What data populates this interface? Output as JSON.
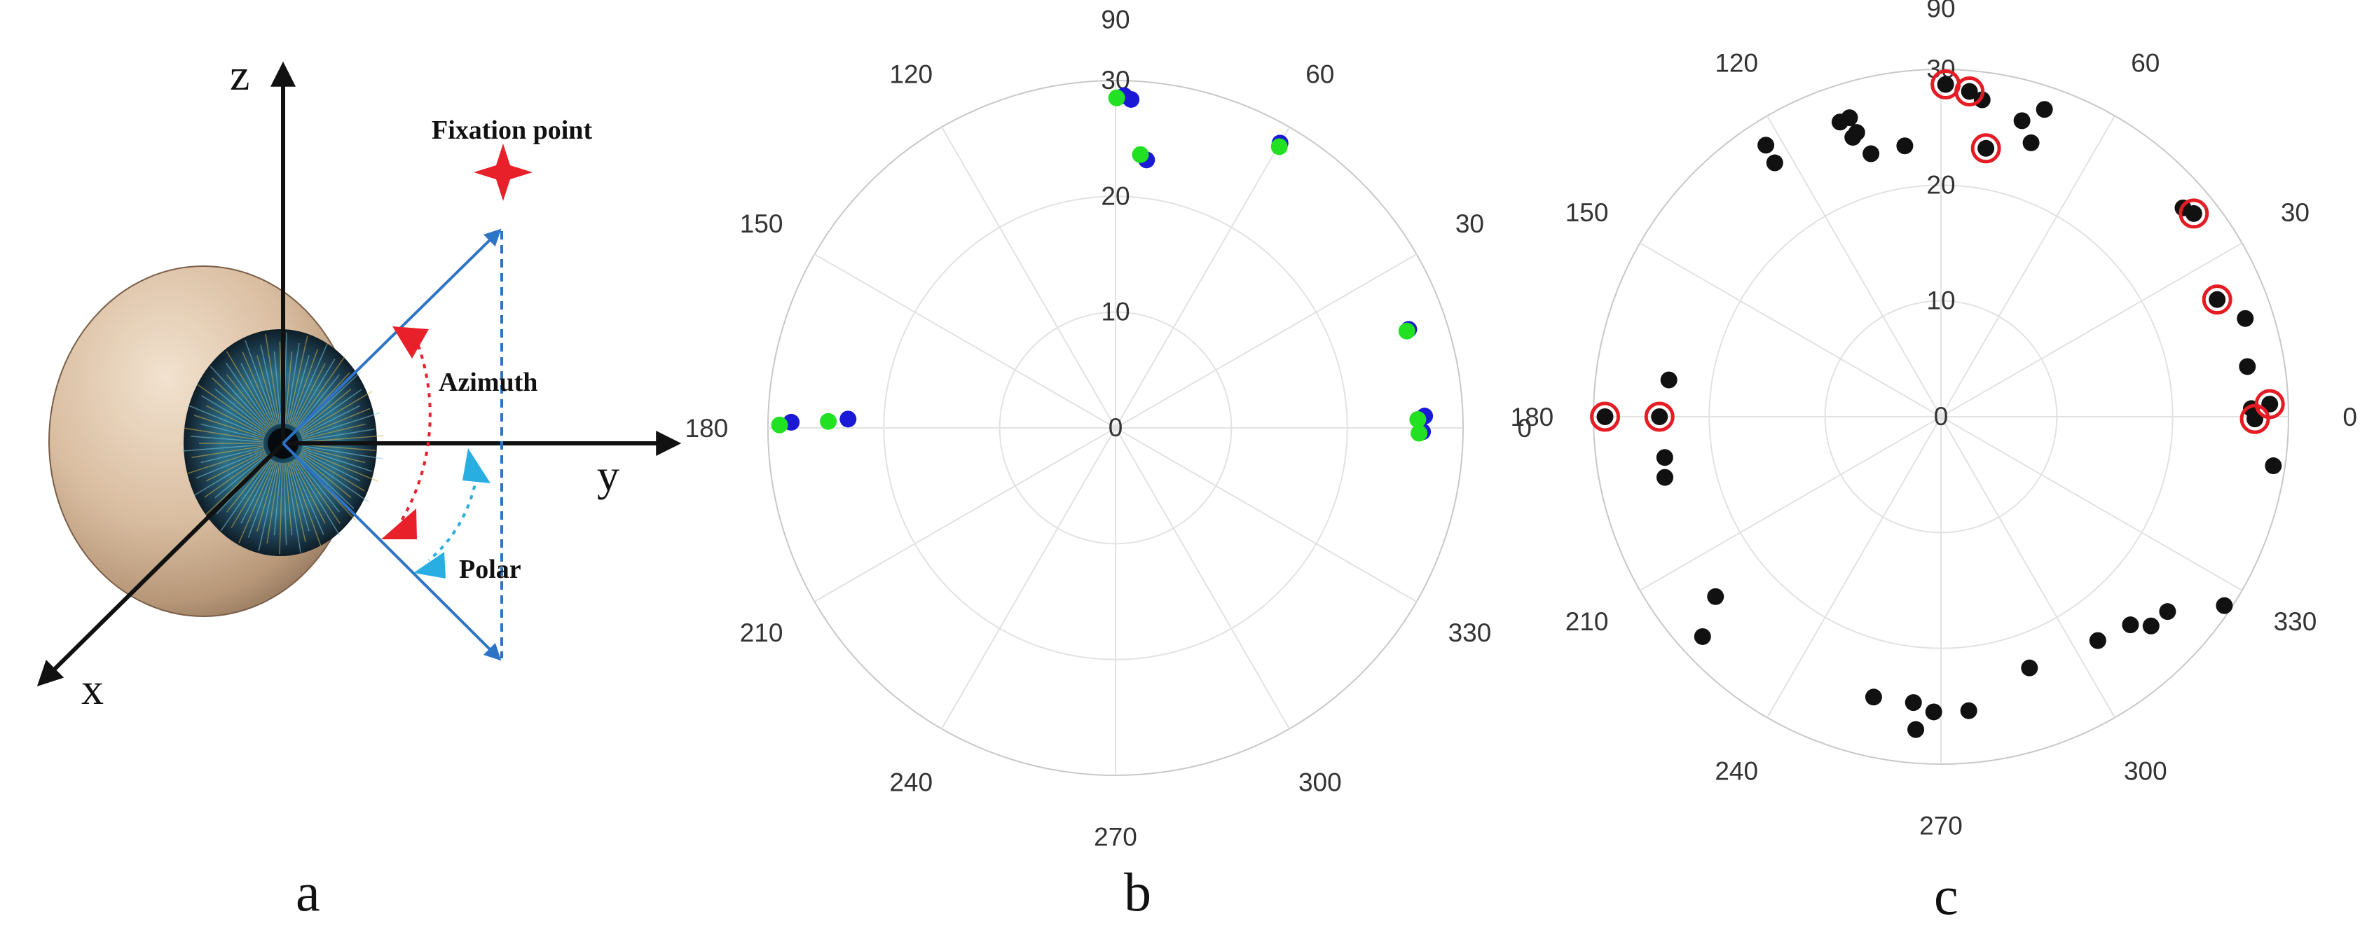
{
  "panel_a": {
    "axis_labels": {
      "z": "z",
      "y": "y",
      "x": "x"
    },
    "fixation_label": "Fixation point",
    "azimuth_label": "Azimuth",
    "polar_label": "Polar",
    "panel_letter": "a",
    "colors": {
      "fixation": "#e8202a",
      "vector": "#2e74c6",
      "azimuth_arc": "#e8202a",
      "polar_arc": "#29aee2"
    }
  },
  "panel_b": {
    "panel_letter": "b",
    "angle_labels": [
      "0",
      "30",
      "60",
      "90",
      "120",
      "150",
      "180",
      "210",
      "240",
      "270",
      "300",
      "330"
    ],
    "radial_labels": [
      "0",
      "10",
      "20",
      "30"
    ]
  },
  "panel_c": {
    "panel_letter": "c",
    "angle_labels": [
      "0",
      "30",
      "60",
      "90",
      "120",
      "150",
      "180",
      "210",
      "240",
      "270",
      "300",
      "330"
    ],
    "radial_labels": [
      "0",
      "10",
      "20",
      "30"
    ]
  },
  "chart_data": [
    {
      "type": "scatter",
      "coordinate_system": "polar",
      "theta_unit": "degrees",
      "r_range": [
        0,
        30
      ],
      "theta_ticks": [
        0,
        30,
        60,
        90,
        120,
        150,
        180,
        210,
        240,
        270,
        300,
        330
      ],
      "r_ticks": [
        0,
        10,
        20,
        30
      ],
      "grid": true,
      "series": [
        {
          "color": "#1a1ad6",
          "points": [
            [
              88.5,
              28.7
            ],
            [
              87.3,
              28.4
            ],
            [
              83.4,
              23.3
            ],
            [
              60.0,
              28.4
            ],
            [
              18.6,
              26.7
            ],
            [
              2.2,
              26.7
            ],
            [
              359.3,
              26.5
            ],
            [
              179.0,
              28.0
            ],
            [
              178.1,
              23.1
            ]
          ]
        },
        {
          "color": "#22e022",
          "points": [
            [
              89.8,
              28.5
            ],
            [
              84.8,
              23.7
            ],
            [
              59.8,
              28.1
            ],
            [
              18.4,
              26.5
            ],
            [
              1.6,
              26.1
            ],
            [
              359.0,
              26.2
            ],
            [
              179.5,
              29.0
            ],
            [
              178.7,
              24.8
            ]
          ]
        }
      ]
    },
    {
      "type": "scatter",
      "coordinate_system": "polar",
      "theta_unit": "degrees",
      "r_range": [
        0,
        30
      ],
      "theta_ticks": [
        0,
        30,
        60,
        90,
        120,
        150,
        180,
        210,
        240,
        270,
        300,
        330
      ],
      "r_ticks": [
        0,
        10,
        20,
        30
      ],
      "grid": true,
      "series": [
        {
          "color": "#111111",
          "points": [
            [
              89.2,
              28.7
            ],
            [
              85.0,
              28.2
            ],
            [
              80.5,
              23.5
            ],
            [
              82.6,
              27.6
            ],
            [
              71.4,
              28.0
            ],
            [
              74.7,
              26.5
            ],
            [
              71.8,
              24.9
            ],
            [
              97.6,
              23.6
            ],
            [
              107.0,
              27.0
            ],
            [
              107.5,
              25.3
            ],
            [
              108.9,
              26.9
            ],
            [
              106.5,
              25.6
            ],
            [
              104.9,
              23.5
            ],
            [
              122.8,
              27.9
            ],
            [
              123.2,
              26.2
            ],
            [
              38.8,
              28.0
            ],
            [
              40.8,
              27.6
            ],
            [
              23.0,
              25.9
            ],
            [
              17.9,
              27.6
            ],
            [
              9.3,
              26.8
            ],
            [
              2.2,
              28.4
            ],
            [
              1.5,
              26.8
            ],
            [
              359.6,
              27.1
            ],
            [
              351.6,
              29.0
            ],
            [
              326.3,
              29.4
            ],
            [
              319.3,
              25.8
            ],
            [
              312.3,
              24.3
            ],
            [
              315.1,
              25.6
            ],
            [
              305.0,
              23.6
            ],
            [
              289.4,
              23.0
            ],
            [
              275.4,
              25.5
            ],
            [
              268.6,
              25.5
            ],
            [
              264.5,
              24.8
            ],
            [
              265.4,
              27.1
            ],
            [
              256.5,
              24.9
            ],
            [
              218.6,
              24.9
            ],
            [
              222.7,
              28.0
            ],
            [
              180.0,
              29.0
            ],
            [
              180.0,
              24.3
            ],
            [
              172.3,
              23.7
            ],
            [
              188.4,
              24.1
            ],
            [
              192.4,
              24.4
            ]
          ]
        },
        {
          "color": "#e51c23",
          "marker": "ring",
          "points": [
            [
              89.2,
              28.7
            ],
            [
              85.0,
              28.2
            ],
            [
              80.5,
              23.5
            ],
            [
              38.8,
              28.0
            ],
            [
              23.0,
              25.9
            ],
            [
              2.2,
              28.4
            ],
            [
              359.6,
              27.1
            ],
            [
              180.0,
              29.0
            ],
            [
              180.0,
              24.3
            ]
          ]
        }
      ]
    }
  ]
}
